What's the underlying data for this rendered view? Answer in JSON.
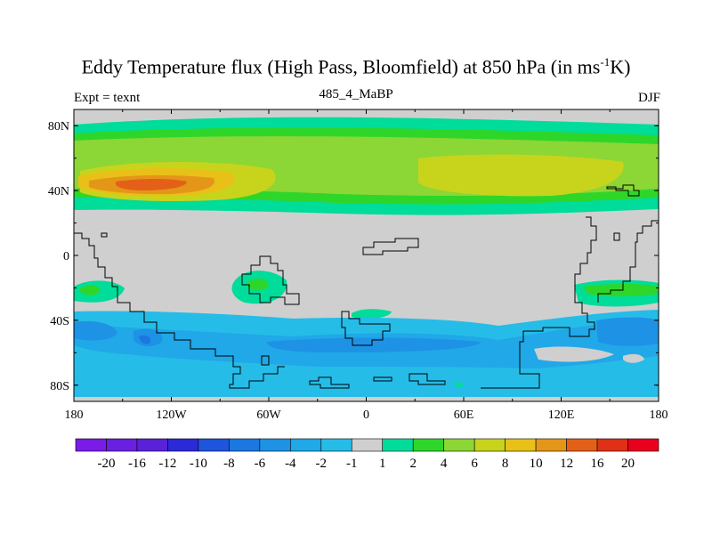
{
  "title": {
    "main": "Eddy Temperature flux (High Pass, Bloomfield) at 850 hPa (in ms",
    "sup": "-1",
    "end": "K)"
  },
  "subtitle": "485_4_MaBP",
  "left_label": "Expt = texnt",
  "right_label": "DJF",
  "map_data": {
    "projection": "cylindrical-equidistant",
    "lon_range": [
      -180,
      180
    ],
    "lat_range": [
      -90,
      90
    ],
    "lat_ticks": [
      "80N",
      "40N",
      "0",
      "40S",
      "80S"
    ],
    "lon_ticks": [
      "180",
      "120W",
      "60W",
      "0",
      "60E",
      "120E",
      "180"
    ],
    "colorbar": {
      "colors": [
        "#7a1be8",
        "#6a20e0",
        "#5a22d8",
        "#2a2ad8",
        "#1f55dc",
        "#1c78e0",
        "#1e92e4",
        "#20a8e8",
        "#26bce8",
        "#cfcfcf",
        "#00dc9a",
        "#2ed62a",
        "#8cd636",
        "#c8d41c",
        "#e8c018",
        "#e49618",
        "#e46018",
        "#e03018",
        "#e8001c"
      ],
      "labels": [
        "-20",
        "-16",
        "-12",
        "-10",
        "-8",
        "-6",
        "-4",
        "-2",
        "-1",
        "1",
        "2",
        "4",
        "6",
        "8",
        "10",
        "12",
        "16",
        "20"
      ]
    }
  }
}
